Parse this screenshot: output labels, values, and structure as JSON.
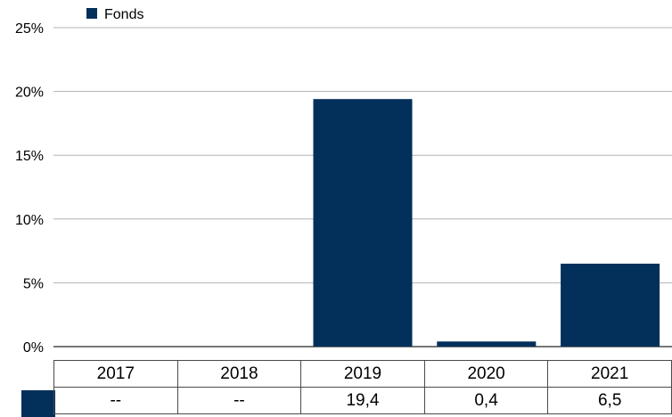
{
  "chart_data": {
    "type": "bar",
    "categories": [
      "2017",
      "2018",
      "2019",
      "2020",
      "2021"
    ],
    "series": [
      {
        "name": "Fonds",
        "values": [
          null,
          null,
          19.4,
          0.4,
          6.5
        ],
        "color": "#03305a"
      }
    ],
    "table_values": [
      "--",
      "--",
      "19,4",
      "0,4",
      "6,5"
    ],
    "yticks": [
      "0%",
      "5%",
      "10%",
      "15%",
      "20%",
      "25%"
    ],
    "ylim": [
      0,
      25
    ],
    "grid": true,
    "legend_position": "top-left",
    "title": "",
    "xlabel": "",
    "ylabel": ""
  }
}
